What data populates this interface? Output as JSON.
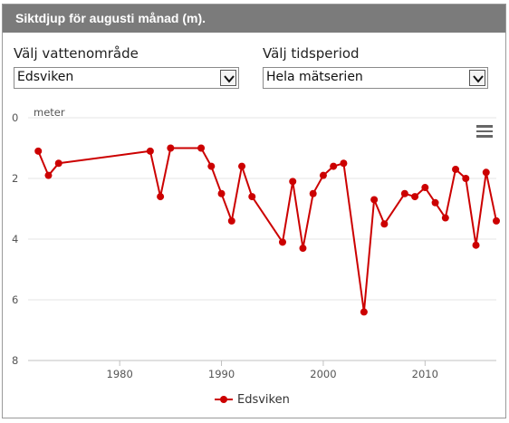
{
  "header": {
    "title": "Siktdjup för augusti månad (m)."
  },
  "controls": {
    "water_area": {
      "label": "Välj vattenområde",
      "value": "Edsviken"
    },
    "time_period": {
      "label": "Välj tidsperiod",
      "value": "Hela mätserien"
    }
  },
  "menu": {
    "icon": "hamburger-menu-icon"
  },
  "colors": {
    "series": "#cc0000",
    "header_bg": "#7b7b7b",
    "grid": "#e6e6e6"
  },
  "chart_data": {
    "type": "line",
    "title": "",
    "xlabel": "",
    "ylabel": "meter",
    "xlim": [
      1971,
      2017
    ],
    "ylim": [
      0,
      8
    ],
    "y_reversed": true,
    "grid": true,
    "xticks": [
      "1980",
      "1990",
      "2000",
      "2010"
    ],
    "yticks": [
      "0",
      "2",
      "4",
      "6",
      "8"
    ],
    "legend_position": "bottom-center",
    "series": [
      {
        "name": "Edsviken",
        "x": [
          1972,
          1973,
          1974,
          1983,
          1984,
          1985,
          1988,
          1989,
          1990,
          1991,
          1992,
          1993,
          1996,
          1997,
          1998,
          1999,
          2000,
          2001,
          2002,
          2004,
          2005,
          2006,
          2008,
          2009,
          2010,
          2011,
          2012,
          2013,
          2014,
          2015,
          2016,
          2017
        ],
        "values": [
          1.1,
          1.9,
          1.5,
          1.1,
          2.6,
          1.0,
          1.0,
          1.6,
          2.5,
          3.4,
          1.6,
          2.6,
          4.1,
          2.1,
          4.3,
          2.5,
          1.9,
          1.6,
          1.5,
          6.4,
          2.7,
          3.5,
          2.5,
          2.6,
          2.3,
          2.8,
          3.3,
          1.7,
          2.0,
          4.2,
          1.8,
          3.4
        ]
      }
    ]
  }
}
